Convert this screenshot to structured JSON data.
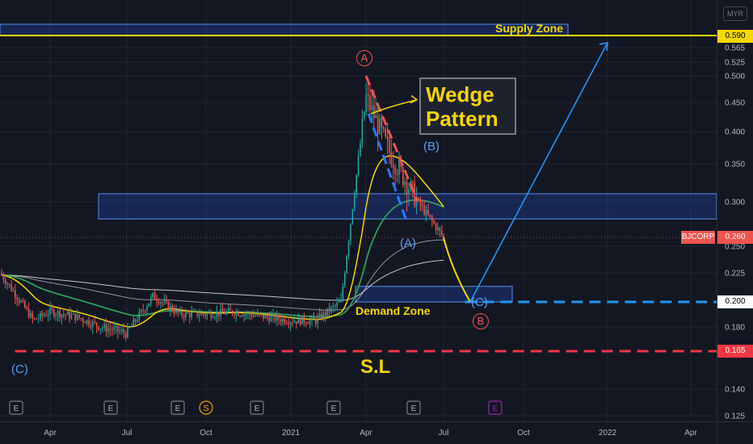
{
  "currency": "MYR",
  "ticker": "BJCORP",
  "price_tags": {
    "supply": "0.590",
    "last": "0.260",
    "target_low": "0.200",
    "stop_loss": "0.165"
  },
  "annotations": {
    "supply_zone": "Supply Zone",
    "demand_zone": "Demand Zone",
    "wedge": [
      "Wedge",
      "Pattern"
    ],
    "stop_loss": "S.L",
    "wave_A_top": "A",
    "wave_B_top": "(B)",
    "wave_A_mid": "(A)",
    "wave_C_left": "(C)",
    "wave_C_right": "(C)",
    "wave_B_bottom": "B"
  },
  "events": [
    {
      "label": "E",
      "type": "earnings"
    },
    {
      "label": "E",
      "type": "earnings"
    },
    {
      "label": "E",
      "type": "earnings"
    },
    {
      "label": "S",
      "type": "split"
    },
    {
      "label": "E",
      "type": "earnings"
    },
    {
      "label": "E",
      "type": "earnings"
    },
    {
      "label": "E",
      "type": "earnings"
    },
    {
      "label": "E",
      "type": "earnings-future"
    }
  ],
  "colors": {
    "background": "#131722",
    "up": "#26a69a",
    "down": "#ef5350",
    "supply_line": "#f5d600",
    "zone_fill": "#2962ff",
    "target_line": "#2196f3",
    "stop_line": "#f23645",
    "ma_fast": "#f5d600",
    "ma_mid": "#2e9e5e",
    "ma_slow": "#e6e6e6"
  },
  "chart_data": {
    "type": "candlestick",
    "x_ticks": [
      "Apr",
      "Jul",
      "Oct",
      "2021",
      "Apr",
      "Jul",
      "Oct",
      "2022",
      "Apr"
    ],
    "y_ticks": [
      "0.565",
      "0.525",
      "0.500",
      "0.450",
      "0.400",
      "0.350",
      "0.300",
      "0.250",
      "0.225",
      "0.180",
      "0.140",
      "0.125"
    ],
    "y_scale": "log",
    "ylim": [
      0.12,
      0.62
    ],
    "zones": [
      {
        "name": "Supply Zone",
        "low": 0.59,
        "high": 0.62
      },
      {
        "name": "",
        "low": 0.28,
        "high": 0.31
      },
      {
        "name": "Demand Zone",
        "low": 0.2,
        "high": 0.213
      }
    ],
    "levels": [
      {
        "value": 0.59,
        "style": "solid",
        "color": "#f5d600"
      },
      {
        "value": 0.2,
        "style": "dashed",
        "color": "#2196f3"
      },
      {
        "value": 0.165,
        "style": "dashed",
        "color": "#f23645"
      },
      {
        "value": 0.26,
        "style": "dotted",
        "color": "#ef5350"
      }
    ],
    "price_path": [
      {
        "date": "2020-01",
        "price": 0.225
      },
      {
        "date": "2020-02",
        "price": 0.205
      },
      {
        "date": "2020-03",
        "price": 0.185
      },
      {
        "date": "2020-04",
        "price": 0.192
      },
      {
        "date": "2020-05",
        "price": 0.188
      },
      {
        "date": "2020-06",
        "price": 0.18
      },
      {
        "date": "2020-07",
        "price": 0.176
      },
      {
        "date": "2020-08",
        "price": 0.205
      },
      {
        "date": "2020-09",
        "price": 0.19
      },
      {
        "date": "2020-10",
        "price": 0.19
      },
      {
        "date": "2020-11",
        "price": 0.192
      },
      {
        "date": "2020-12",
        "price": 0.188
      },
      {
        "date": "2021-01",
        "price": 0.185
      },
      {
        "date": "2021-02",
        "price": 0.185
      },
      {
        "date": "2021-03",
        "price": 0.2
      },
      {
        "date": "2021-04",
        "price": 0.46
      },
      {
        "date": "2021-05",
        "price": 0.36
      },
      {
        "date": "2021-06",
        "price": 0.3
      },
      {
        "date": "2021-07",
        "price": 0.26
      }
    ],
    "projection": [
      {
        "date": "2021-07",
        "price": 0.26
      },
      {
        "date": "2021-08",
        "price": 0.2
      },
      {
        "date": "2022-01",
        "price": 0.59
      }
    ]
  }
}
